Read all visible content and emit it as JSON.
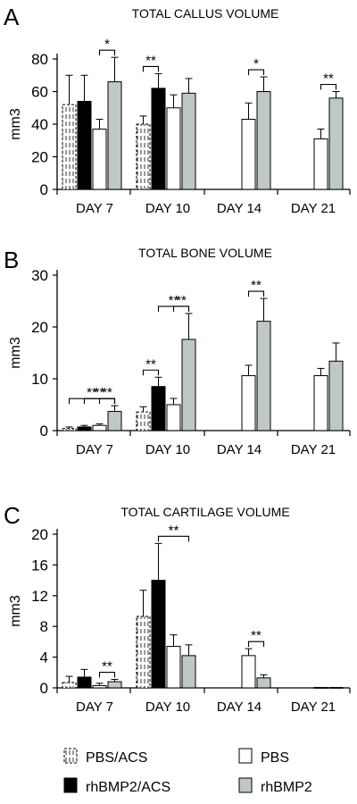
{
  "chart_data": [
    {
      "type": "bar",
      "panel_letter": "A",
      "title": "TOTAL CALLUS VOLUME",
      "xlabel": "",
      "ylabel": "mm3",
      "ylim": [
        0,
        80
      ],
      "yticks": [
        0,
        20,
        40,
        60,
        80
      ],
      "categories": [
        "DAY 7",
        "DAY 10",
        "DAY 14",
        "DAY 21"
      ],
      "series": [
        {
          "name": "PBS/ACS",
          "values": [
            52,
            40,
            null,
            null
          ],
          "errors": [
            18,
            5,
            null,
            null
          ]
        },
        {
          "name": "rhBMP2/ACS",
          "values": [
            54,
            62,
            null,
            null
          ],
          "errors": [
            16,
            9,
            null,
            null
          ]
        },
        {
          "name": "PBS",
          "values": [
            37,
            50,
            43,
            31
          ],
          "errors": [
            6,
            8,
            10,
            6
          ]
        },
        {
          "name": "rhBMP2",
          "values": [
            66,
            59,
            60,
            56
          ],
          "errors": [
            15,
            9,
            9,
            4
          ]
        }
      ],
      "significance": [
        {
          "category": 0,
          "from_series": 2,
          "to_series": 3,
          "label": "*"
        },
        {
          "category": 1,
          "from_series": 0,
          "to_series": 1,
          "label": "**"
        },
        {
          "category": 2,
          "from_series": 2,
          "to_series": 3,
          "label": "*"
        },
        {
          "category": 3,
          "from_series": 2,
          "to_series": 3,
          "label": "**"
        }
      ]
    },
    {
      "type": "bar",
      "panel_letter": "B",
      "title": "TOTAL BONE VOLUME",
      "xlabel": "",
      "ylabel": "mm3",
      "ylim": [
        0,
        30
      ],
      "yticks": [
        0,
        10,
        20,
        30
      ],
      "categories": [
        "DAY 7",
        "DAY 10",
        "DAY 14",
        "DAY 21"
      ],
      "series": [
        {
          "name": "PBS/ACS",
          "values": [
            0.4,
            3.6,
            null,
            null
          ],
          "errors": [
            0.3,
            1.0,
            null,
            null
          ]
        },
        {
          "name": "rhBMP2/ACS",
          "values": [
            0.7,
            8.5,
            null,
            null
          ],
          "errors": [
            0.3,
            1.8,
            null,
            null
          ]
        },
        {
          "name": "PBS",
          "values": [
            1.0,
            5.0,
            10.6,
            10.6
          ],
          "errors": [
            0.3,
            1.2,
            2.0,
            1.4
          ]
        },
        {
          "name": "rhBMP2",
          "values": [
            3.7,
            17.6,
            21.1,
            13.4
          ],
          "errors": [
            1.1,
            5.0,
            4.4,
            3.5
          ]
        }
      ],
      "significance": [
        {
          "category": 0,
          "from_series": 0,
          "to_series": 3,
          "label": "**"
        },
        {
          "category": 0,
          "from_series": 1,
          "to_series": 3,
          "label": "**"
        },
        {
          "category": 0,
          "from_series": 2,
          "to_series": 3,
          "label": "**"
        },
        {
          "category": 1,
          "from_series": 0,
          "to_series": 1,
          "label": "**"
        },
        {
          "category": 1,
          "from_series": 1,
          "to_series": 3,
          "label": "**"
        },
        {
          "category": 1,
          "from_series": 2,
          "to_series": 3,
          "label": "**"
        },
        {
          "category": 2,
          "from_series": 2,
          "to_series": 3,
          "label": "**"
        }
      ]
    },
    {
      "type": "bar",
      "panel_letter": "C",
      "title": "TOTAL CARTILAGE VOLUME",
      "xlabel": "",
      "ylabel": "mm3",
      "ylim": [
        0,
        20
      ],
      "yticks": [
        0,
        4,
        8,
        12,
        16,
        20
      ],
      "categories": [
        "DAY 7",
        "DAY 10",
        "DAY 14",
        "DAY 21"
      ],
      "series": [
        {
          "name": "PBS/ACS",
          "values": [
            0.7,
            9.3,
            null,
            null
          ],
          "errors": [
            0.8,
            3.4,
            null,
            null
          ]
        },
        {
          "name": "rhBMP2/ACS",
          "values": [
            1.4,
            14.0,
            null,
            null
          ],
          "errors": [
            1.0,
            4.8,
            null,
            null
          ]
        },
        {
          "name": "PBS",
          "values": [
            0.3,
            5.4,
            4.2,
            0.05
          ],
          "errors": [
            0.3,
            1.5,
            0.9,
            0
          ]
        },
        {
          "name": "rhBMP2",
          "values": [
            0.8,
            4.2,
            1.3,
            0.05
          ],
          "errors": [
            0.3,
            1.4,
            0.4,
            0
          ]
        }
      ],
      "significance": [
        {
          "category": 0,
          "from_series": 2,
          "to_series": 3,
          "label": "**"
        },
        {
          "category": 1,
          "from_series": 1,
          "to_series": 3,
          "label": "**"
        },
        {
          "category": 2,
          "from_series": 2,
          "to_series": 3,
          "label": "**"
        }
      ]
    }
  ],
  "legend": {
    "placement": "bottom",
    "items": [
      {
        "label": "PBS/ACS",
        "series_index": 0
      },
      {
        "label": "PBS",
        "series_index": 2
      },
      {
        "label": "rhBMP2/ACS",
        "series_index": 1
      },
      {
        "label": "rhBMP2",
        "series_index": 3
      }
    ]
  },
  "colors": {
    "PBS/ACS": "#ffffff",
    "rhBMP2/ACS": "#000000",
    "PBS": "#ffffff",
    "rhBMP2": "#bfc8c6"
  },
  "series_styles": [
    "dashed-white",
    "solid-black",
    "solid-white",
    "solid-gray"
  ]
}
